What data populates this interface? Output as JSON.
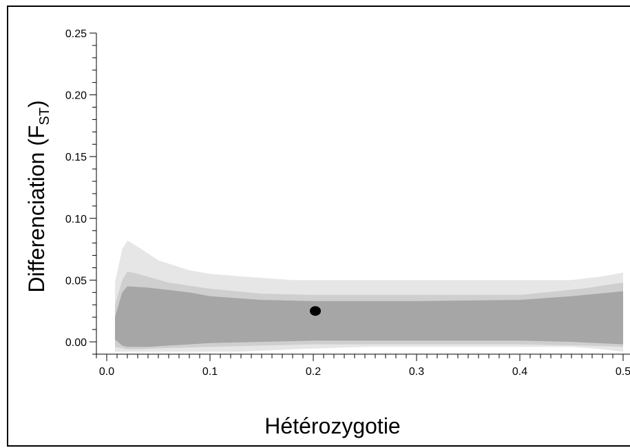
{
  "chart_data": {
    "type": "scatter",
    "title": "",
    "xlabel": "Hétérozygotie",
    "ylabel": "Differenciation (F",
    "ylabel_sub": "ST",
    "ylabel_close": ")",
    "xlim": [
      -0.01,
      0.5
    ],
    "ylim": [
      -0.01,
      0.25
    ],
    "x_ticks": [
      {
        "v": 0.0,
        "label": "0.0"
      },
      {
        "v": 0.1,
        "label": "0.1"
      },
      {
        "v": 0.2,
        "label": "0.2"
      },
      {
        "v": 0.3,
        "label": "0.3"
      },
      {
        "v": 0.4,
        "label": "0.4"
      },
      {
        "v": 0.5,
        "label": "0.5"
      }
    ],
    "y_ticks": [
      {
        "v": 0.0,
        "label": "0.00"
      },
      {
        "v": 0.05,
        "label": "0.05"
      },
      {
        "v": 0.1,
        "label": "0.10"
      },
      {
        "v": 0.15,
        "label": "0.15"
      },
      {
        "v": 0.2,
        "label": "0.20"
      },
      {
        "v": 0.25,
        "label": "0.25"
      }
    ],
    "bands": [
      {
        "color": "#e6e6e6",
        "x": [
          0.008,
          0.015,
          0.02,
          0.03,
          0.05,
          0.08,
          0.1,
          0.13,
          0.18,
          0.25,
          0.35,
          0.45,
          0.48,
          0.5
        ],
        "upper": [
          0.048,
          0.075,
          0.082,
          0.077,
          0.066,
          0.058,
          0.055,
          0.053,
          0.05,
          0.05,
          0.05,
          0.05,
          0.053,
          0.056
        ],
        "lower": [
          -0.008,
          -0.008,
          -0.008,
          -0.008,
          -0.008,
          -0.008,
          -0.008,
          -0.008,
          -0.006,
          -0.004,
          -0.004,
          -0.004,
          -0.006,
          -0.008
        ]
      },
      {
        "color": "#cfcfcf",
        "x": [
          0.008,
          0.015,
          0.02,
          0.03,
          0.06,
          0.1,
          0.15,
          0.2,
          0.3,
          0.4,
          0.46,
          0.5
        ],
        "upper": [
          0.03,
          0.05,
          0.057,
          0.055,
          0.048,
          0.043,
          0.039,
          0.038,
          0.038,
          0.038,
          0.043,
          0.048
        ],
        "lower": [
          -0.004,
          -0.005,
          -0.006,
          -0.006,
          -0.005,
          -0.004,
          -0.003,
          -0.002,
          -0.002,
          -0.002,
          -0.003,
          -0.004
        ]
      },
      {
        "color": "#a6a6a6",
        "x": [
          0.008,
          0.015,
          0.02,
          0.04,
          0.08,
          0.1,
          0.15,
          0.2,
          0.3,
          0.4,
          0.45,
          0.5
        ],
        "upper": [
          0.02,
          0.04,
          0.045,
          0.044,
          0.04,
          0.037,
          0.034,
          0.033,
          0.033,
          0.034,
          0.037,
          0.041
        ],
        "lower": [
          0.002,
          -0.003,
          -0.004,
          -0.004,
          -0.002,
          -0.001,
          0.0,
          0.001,
          0.001,
          0.001,
          0.0,
          -0.002
        ]
      }
    ],
    "points": [
      {
        "x": 0.202,
        "y": 0.025
      }
    ],
    "point_color": "#000000"
  }
}
